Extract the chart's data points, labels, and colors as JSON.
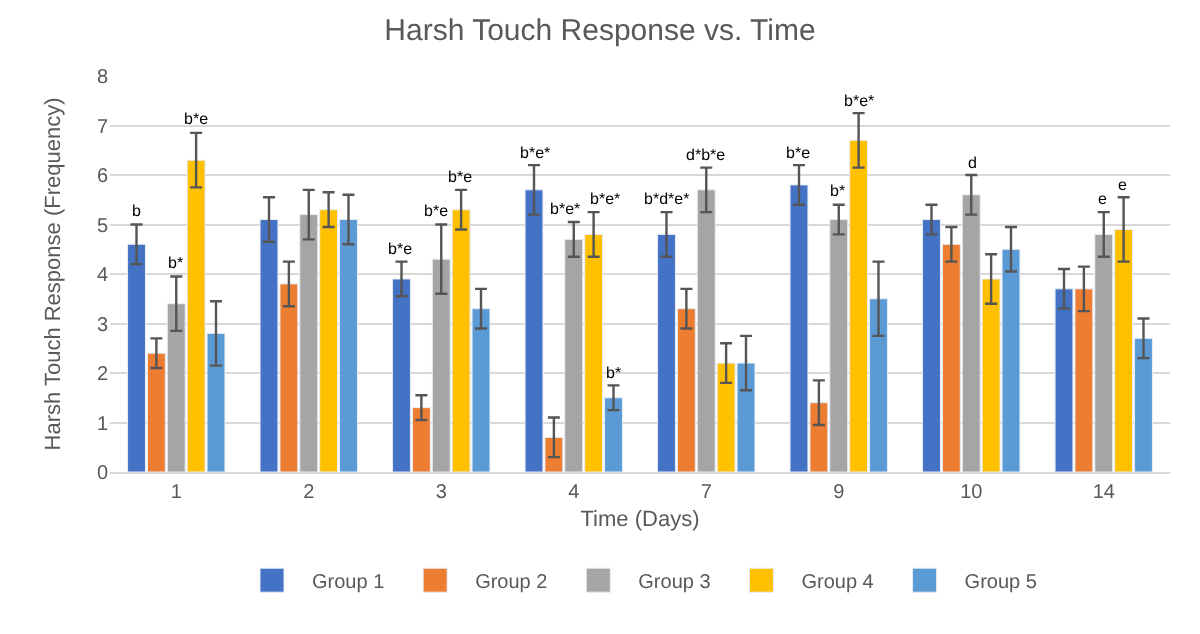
{
  "chart_data": {
    "type": "bar",
    "title": "Harsh Touch Response vs. Time",
    "xlabel": "Time (Days)",
    "ylabel": "Harsh Touch Response (Frequency)",
    "categories": [
      "1",
      "2",
      "3",
      "4",
      "7",
      "9",
      "10",
      "14"
    ],
    "ylim": [
      0,
      8
    ],
    "yticks": [
      0,
      1,
      2,
      3,
      4,
      5,
      6,
      7,
      8
    ],
    "grid": "y",
    "legend": "bottom",
    "series": [
      {
        "name": "Group 1",
        "color": "#4472c4",
        "values": [
          4.6,
          5.1,
          3.9,
          5.7,
          4.8,
          5.8,
          5.1,
          3.7
        ],
        "errors": [
          0.4,
          0.45,
          0.35,
          0.5,
          0.45,
          0.4,
          0.3,
          0.4
        ],
        "value_labels": [
          "b",
          null,
          "b*e",
          "b*e*",
          "b*d*e*",
          "b*e",
          null,
          null
        ]
      },
      {
        "name": "Group 2",
        "color": "#ed7d31",
        "values": [
          2.4,
          3.8,
          1.3,
          0.7,
          3.3,
          1.4,
          4.6,
          3.7
        ],
        "errors": [
          0.3,
          0.45,
          0.25,
          0.4,
          0.4,
          0.45,
          0.35,
          0.45
        ]
      },
      {
        "name": "Group 3",
        "color": "#a5a5a5",
        "values": [
          3.4,
          5.2,
          4.3,
          4.7,
          5.7,
          5.1,
          5.6,
          4.8
        ],
        "errors": [
          0.55,
          0.5,
          0.7,
          0.35,
          0.45,
          0.3,
          0.4,
          0.45
        ],
        "value_labels": [
          "b*",
          null,
          "b*e",
          "b*e*",
          "d*b*e",
          "b*",
          "d",
          "e"
        ]
      },
      {
        "name": "Group 4",
        "color": "#ffc000",
        "values": [
          6.3,
          5.3,
          5.3,
          4.8,
          2.2,
          6.7,
          3.9,
          4.9
        ],
        "errors": [
          0.55,
          0.35,
          0.4,
          0.45,
          0.4,
          0.55,
          0.5,
          0.65
        ],
        "value_labels": [
          "b*e",
          null,
          "b*e",
          "b*e*",
          null,
          "b*e*",
          null,
          "e"
        ]
      },
      {
        "name": "Group 5",
        "color": "#5b9bd5",
        "values": [
          2.8,
          5.1,
          3.3,
          1.5,
          2.2,
          3.5,
          4.5,
          2.7
        ],
        "errors": [
          0.65,
          0.5,
          0.4,
          0.25,
          0.55,
          0.75,
          0.45,
          0.4
        ],
        "value_labels": [
          null,
          null,
          null,
          "b*",
          null,
          null,
          null,
          null
        ]
      }
    ]
  }
}
